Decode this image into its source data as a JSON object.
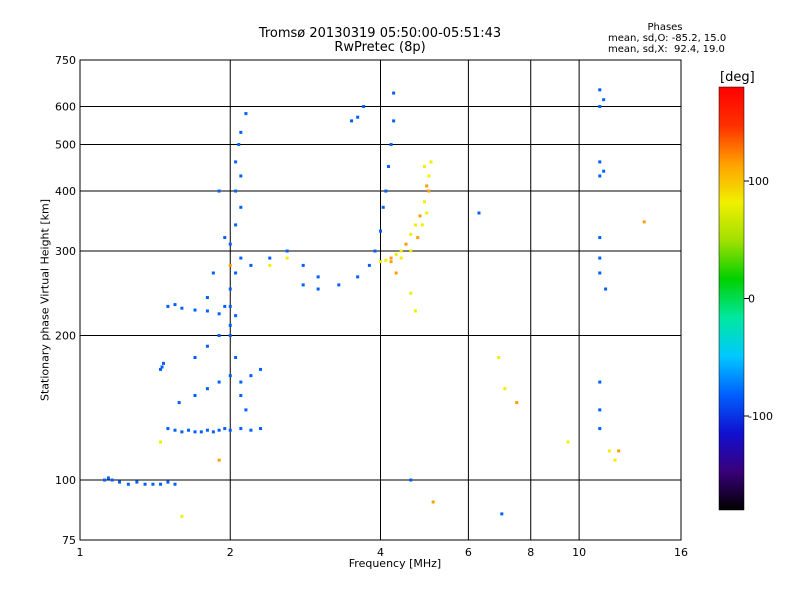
{
  "header": {
    "title_line1": "Tromsø 20130319 05:50:00-05:51:43",
    "title_line2": "RwPretec (8p)"
  },
  "stats": {
    "title": "Phases",
    "line_o": "mean, sd,O: -85.2, 15.0",
    "line_x": "mean, sd,X:  92.4, 19.0"
  },
  "colorbar": {
    "unit": "[deg]",
    "ticks": [
      "100",
      "0",
      "-100"
    ],
    "tick_values": [
      100,
      0,
      -100
    ],
    "range": [
      -180,
      180
    ],
    "colors": [
      "#000000",
      "#3a007a",
      "#1010d0",
      "#0060ff",
      "#00c8ff",
      "#00e8a0",
      "#00d000",
      "#a0e000",
      "#f0f000",
      "#ffa000",
      "#ff3000",
      "#ff0000"
    ]
  },
  "chart_data": {
    "type": "scatter",
    "title": "Tromsø 20130319 05:50:00-05:51:43",
    "subtitle": "RwPretec (8p)",
    "xlabel": "Frequency [MHz]",
    "ylabel": "Stationary phase Virtual Height [km]",
    "x_scale": "log",
    "y_scale": "log",
    "xlim": [
      1,
      16
    ],
    "ylim": [
      75,
      750
    ],
    "x_ticks": [
      1,
      2,
      4,
      6,
      8,
      10,
      16
    ],
    "x_tick_labels": [
      "1",
      "2",
      "4",
      "6",
      "8",
      "10",
      "16"
    ],
    "y_ticks": [
      75,
      100,
      200,
      300,
      400,
      500,
      600,
      750
    ],
    "y_tick_labels": [
      "75",
      "100",
      "200",
      "300",
      "400",
      "500",
      "600",
      "750"
    ],
    "grid": true,
    "color_encodes": "phase [deg]",
    "series": [
      {
        "mode": "O",
        "phase_mean": -85.2,
        "phase_sd": 15.0,
        "points": [
          [
            1.12,
            100
          ],
          [
            1.14,
            101
          ],
          [
            1.16,
            100
          ],
          [
            1.2,
            99
          ],
          [
            1.25,
            98
          ],
          [
            1.3,
            99
          ],
          [
            1.35,
            98
          ],
          [
            1.4,
            98
          ],
          [
            1.45,
            98
          ],
          [
            1.5,
            99
          ],
          [
            1.55,
            98
          ],
          [
            1.5,
            128
          ],
          [
            1.55,
            127
          ],
          [
            1.6,
            126
          ],
          [
            1.65,
            127
          ],
          [
            1.7,
            126
          ],
          [
            1.75,
            126
          ],
          [
            1.8,
            127
          ],
          [
            1.85,
            126
          ],
          [
            1.9,
            127
          ],
          [
            1.95,
            128
          ],
          [
            2.0,
            127
          ],
          [
            2.1,
            128
          ],
          [
            2.2,
            127
          ],
          [
            2.3,
            128
          ],
          [
            1.58,
            145
          ],
          [
            1.7,
            150
          ],
          [
            1.8,
            155
          ],
          [
            1.9,
            160
          ],
          [
            2.0,
            165
          ],
          [
            2.1,
            150
          ],
          [
            2.2,
            165
          ],
          [
            2.3,
            170
          ],
          [
            1.45,
            170
          ],
          [
            1.47,
            175
          ],
          [
            1.46,
            172
          ],
          [
            1.7,
            180
          ],
          [
            1.8,
            190
          ],
          [
            1.9,
            200
          ],
          [
            2.0,
            210
          ],
          [
            2.05,
            220
          ],
          [
            1.5,
            230
          ],
          [
            1.55,
            232
          ],
          [
            1.6,
            228
          ],
          [
            1.7,
            226
          ],
          [
            1.8,
            225
          ],
          [
            1.9,
            222
          ],
          [
            2.0,
            230
          ],
          [
            2.0,
            250
          ],
          [
            2.05,
            270
          ],
          [
            2.1,
            290
          ],
          [
            2.0,
            310
          ],
          [
            2.05,
            340
          ],
          [
            2.1,
            370
          ],
          [
            2.05,
            400
          ],
          [
            2.1,
            430
          ],
          [
            2.05,
            460
          ],
          [
            2.08,
            500
          ],
          [
            2.1,
            530
          ],
          [
            2.15,
            580
          ],
          [
            2.2,
            280
          ],
          [
            2.4,
            290
          ],
          [
            2.6,
            300
          ],
          [
            2.8,
            280
          ],
          [
            3.0,
            265
          ],
          [
            2.8,
            255
          ],
          [
            3.0,
            250
          ],
          [
            3.3,
            255
          ],
          [
            3.6,
            265
          ],
          [
            3.8,
            280
          ],
          [
            3.9,
            300
          ],
          [
            4.0,
            330
          ],
          [
            4.05,
            370
          ],
          [
            4.1,
            400
          ],
          [
            4.15,
            450
          ],
          [
            4.2,
            500
          ],
          [
            4.25,
            560
          ],
          [
            4.25,
            640
          ],
          [
            3.5,
            560
          ],
          [
            3.6,
            570
          ],
          [
            3.7,
            600
          ],
          [
            1.9,
            400
          ],
          [
            1.95,
            320
          ],
          [
            1.85,
            270
          ],
          [
            1.8,
            240
          ],
          [
            1.95,
            230
          ],
          [
            2.0,
            200
          ],
          [
            2.05,
            180
          ],
          [
            2.1,
            160
          ],
          [
            2.15,
            140
          ],
          [
            11.0,
            650
          ],
          [
            11.0,
            600
          ],
          [
            11.2,
            620
          ],
          [
            11.0,
            460
          ],
          [
            11.0,
            430
          ],
          [
            11.2,
            440
          ],
          [
            11.0,
            320
          ],
          [
            11.0,
            290
          ],
          [
            11.0,
            270
          ],
          [
            11.3,
            250
          ],
          [
            11.0,
            160
          ],
          [
            11.0,
            140
          ],
          [
            11.0,
            128
          ],
          [
            6.3,
            360
          ],
          [
            7.0,
            85
          ],
          [
            4.6,
            100
          ]
        ]
      },
      {
        "mode": "X",
        "phase_mean": 92.4,
        "phase_sd": 19.0,
        "points": [
          [
            4.0,
            285
          ],
          [
            4.1,
            287
          ],
          [
            4.2,
            290
          ],
          [
            4.3,
            295
          ],
          [
            4.4,
            300
          ],
          [
            4.5,
            310
          ],
          [
            4.6,
            325
          ],
          [
            4.7,
            340
          ],
          [
            4.8,
            355
          ],
          [
            4.9,
            380
          ],
          [
            4.95,
            410
          ],
          [
            5.0,
            430
          ],
          [
            4.9,
            450
          ],
          [
            4.2,
            285
          ],
          [
            4.4,
            290
          ],
          [
            4.6,
            300
          ],
          [
            4.75,
            320
          ],
          [
            4.85,
            340
          ],
          [
            4.95,
            360
          ],
          [
            5.0,
            400
          ],
          [
            5.05,
            460
          ],
          [
            4.3,
            270
          ],
          [
            4.6,
            245
          ],
          [
            4.7,
            225
          ],
          [
            5.1,
            90
          ],
          [
            6.9,
            180
          ],
          [
            7.1,
            155
          ],
          [
            7.5,
            145
          ],
          [
            9.5,
            120
          ],
          [
            11.8,
            110
          ],
          [
            12.0,
            115
          ],
          [
            11.5,
            115
          ],
          [
            13.5,
            345
          ],
          [
            2.4,
            280
          ],
          [
            2.6,
            290
          ],
          [
            1.9,
            110
          ],
          [
            1.6,
            84
          ],
          [
            1.45,
            120
          ],
          [
            2.0,
            280
          ]
        ]
      }
    ]
  }
}
